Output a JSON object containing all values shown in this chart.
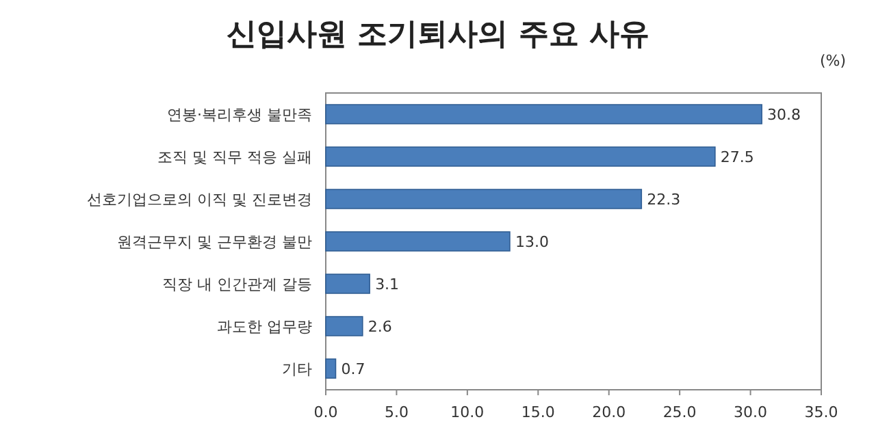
{
  "chart_data": {
    "type": "bar",
    "orientation": "horizontal",
    "title": "신입사원 조기퇴사의 주요 사유",
    "annotations": [
      "(%)"
    ],
    "categories": [
      "연봉·복리후생 불만족",
      "조직 및 직무 적응 실패",
      "선호기업으로의 이직 및 진로변경",
      "원격근무지 및 근무환경 불만",
      "직장 내 인간관계 갈등",
      "과도한 업무량",
      "기타"
    ],
    "values": [
      30.8,
      27.5,
      22.3,
      13.0,
      3.1,
      2.6,
      0.7
    ],
    "value_labels": [
      "30.8",
      "27.5",
      "22.3",
      "13.0",
      "3.1",
      "2.6",
      "0.7"
    ],
    "color": "#4a7ebb",
    "xlim": [
      0,
      35
    ],
    "xticks": [
      {
        "value": 0,
        "label": "0.0"
      },
      {
        "value": 5,
        "label": "5.0"
      },
      {
        "value": 10,
        "label": "10.0"
      },
      {
        "value": 15,
        "label": "15.0"
      },
      {
        "value": 20,
        "label": "20.0"
      },
      {
        "value": 25,
        "label": "25.0"
      },
      {
        "value": 30,
        "label": "30.0"
      },
      {
        "value": 35,
        "label": "35.0"
      }
    ]
  }
}
